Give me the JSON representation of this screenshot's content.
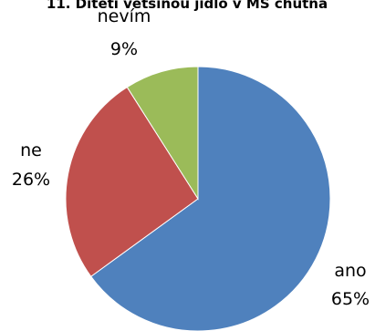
{
  "chart_data": {
    "type": "pie",
    "title": "11. Dítěti většinou jídlo v MŠ chutná",
    "start_angle": 0,
    "direction": "clockwise",
    "slices": [
      {
        "label": "ano",
        "value": 65,
        "value_label": "65%",
        "color": "#4f81bd"
      },
      {
        "label": "ne",
        "value": 26,
        "value_label": "26%",
        "color": "#c0504d"
      },
      {
        "label": "nevím",
        "value": 9,
        "value_label": "9%",
        "color": "#9bbb59"
      }
    ]
  }
}
